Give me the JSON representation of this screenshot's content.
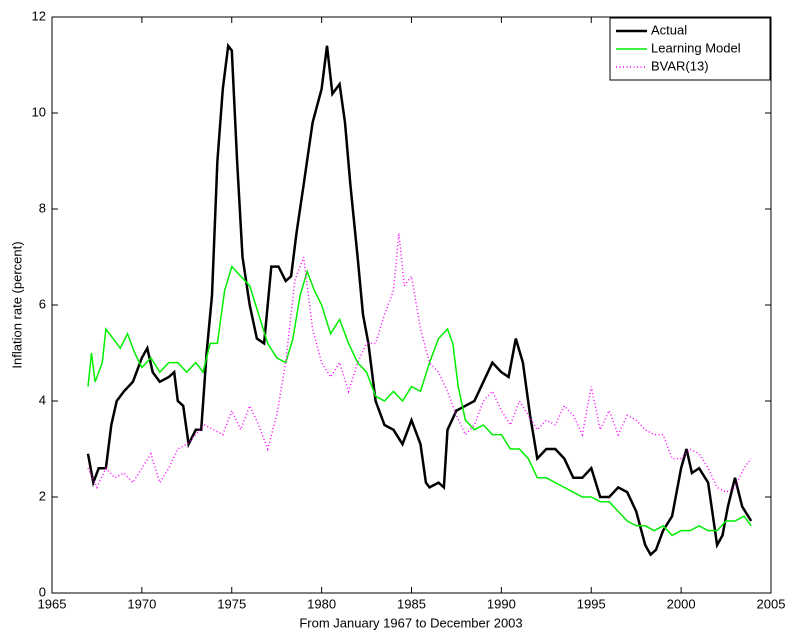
{
  "chart_data": {
    "type": "line",
    "xlabel": "From January 1967 to December 2003",
    "ylabel": "Inflation rate (percent)",
    "xlim": [
      1965,
      2005
    ],
    "xticks": [
      1965,
      1970,
      1975,
      1980,
      1985,
      1990,
      1995,
      2000,
      2005
    ],
    "ylim": [
      0,
      12
    ],
    "yticks": [
      0,
      2,
      4,
      6,
      8,
      10,
      12
    ],
    "legend": "upper right",
    "series": [
      {
        "name": "Actual",
        "color": "#000000",
        "style": "solid",
        "x": [
          1967.0,
          1967.3,
          1967.6,
          1968.0,
          1968.3,
          1968.6,
          1969.0,
          1969.5,
          1970.0,
          1970.3,
          1970.6,
          1971.0,
          1971.5,
          1971.8,
          1972.0,
          1972.3,
          1972.6,
          1973.0,
          1973.3,
          1973.6,
          1973.9,
          1974.2,
          1974.5,
          1974.8,
          1975.0,
          1975.3,
          1975.6,
          1976.0,
          1976.4,
          1976.8,
          1977.2,
          1977.6,
          1978.0,
          1978.3,
          1978.6,
          1979.0,
          1979.5,
          1980.0,
          1980.3,
          1980.6,
          1981.0,
          1981.3,
          1981.6,
          1982.0,
          1982.3,
          1982.6,
          1983.0,
          1983.5,
          1984.0,
          1984.5,
          1985.0,
          1985.5,
          1985.8,
          1986.0,
          1986.5,
          1986.8,
          1987.0,
          1987.5,
          1988.0,
          1988.5,
          1989.0,
          1989.5,
          1990.0,
          1990.4,
          1990.8,
          1991.2,
          1991.6,
          1992.0,
          1992.5,
          1993.0,
          1993.5,
          1994.0,
          1994.5,
          1995.0,
          1995.5,
          1996.0,
          1996.5,
          1997.0,
          1997.5,
          1998.0,
          1998.3,
          1998.6,
          1999.0,
          1999.5,
          2000.0,
          2000.3,
          2000.6,
          2001.0,
          2001.5,
          2002.0,
          2002.3,
          2002.6,
          2003.0,
          2003.4,
          2003.9
        ],
        "values": [
          2.9,
          2.3,
          2.6,
          2.6,
          3.5,
          4.0,
          4.2,
          4.4,
          4.9,
          5.1,
          4.6,
          4.4,
          4.5,
          4.6,
          4.0,
          3.9,
          3.1,
          3.4,
          3.4,
          5.0,
          6.2,
          9.0,
          10.5,
          11.4,
          11.3,
          9.0,
          7.0,
          6.0,
          5.3,
          5.2,
          6.8,
          6.8,
          6.5,
          6.6,
          7.5,
          8.5,
          9.8,
          10.5,
          11.4,
          10.4,
          10.6,
          9.8,
          8.5,
          7.0,
          5.8,
          5.2,
          4.0,
          3.5,
          3.4,
          3.1,
          3.6,
          3.1,
          2.3,
          2.2,
          2.3,
          2.2,
          3.4,
          3.8,
          3.9,
          4.0,
          4.4,
          4.8,
          4.6,
          4.5,
          5.3,
          4.8,
          3.7,
          2.8,
          3.0,
          3.0,
          2.8,
          2.4,
          2.4,
          2.6,
          2.0,
          2.0,
          2.2,
          2.1,
          1.7,
          1.0,
          0.8,
          0.9,
          1.3,
          1.6,
          2.6,
          3.0,
          2.5,
          2.6,
          2.3,
          1.0,
          1.2,
          1.8,
          2.4,
          1.8,
          1.5
        ]
      },
      {
        "name": "Learning Model",
        "color": "#00ee00",
        "style": "solid",
        "x": [
          1967.0,
          1967.2,
          1967.4,
          1967.8,
          1968.0,
          1968.4,
          1968.8,
          1969.2,
          1969.6,
          1970.0,
          1970.5,
          1971.0,
          1971.5,
          1972.0,
          1972.5,
          1973.0,
          1973.4,
          1973.8,
          1974.2,
          1974.6,
          1975.0,
          1975.5,
          1976.0,
          1976.5,
          1977.0,
          1977.5,
          1978.0,
          1978.4,
          1978.8,
          1979.2,
          1979.6,
          1980.0,
          1980.5,
          1981.0,
          1981.5,
          1982.0,
          1982.5,
          1983.0,
          1983.5,
          1984.0,
          1984.5,
          1985.0,
          1985.5,
          1986.0,
          1986.5,
          1987.0,
          1987.3,
          1987.6,
          1988.0,
          1988.5,
          1989.0,
          1989.5,
          1990.0,
          1990.5,
          1991.0,
          1991.5,
          1992.0,
          1992.5,
          1993.0,
          1993.5,
          1994.0,
          1994.5,
          1995.0,
          1995.5,
          1996.0,
          1996.5,
          1997.0,
          1997.5,
          1998.0,
          1998.5,
          1999.0,
          1999.5,
          2000.0,
          2000.5,
          2001.0,
          2001.5,
          2002.0,
          2002.5,
          2003.0,
          2003.5,
          2003.9
        ],
        "values": [
          4.3,
          5.0,
          4.4,
          4.8,
          5.5,
          5.3,
          5.1,
          5.4,
          5.0,
          4.7,
          4.9,
          4.6,
          4.8,
          4.8,
          4.6,
          4.8,
          4.6,
          5.2,
          5.2,
          6.3,
          6.8,
          6.6,
          6.4,
          5.8,
          5.2,
          4.9,
          4.8,
          5.3,
          6.2,
          6.7,
          6.3,
          6.0,
          5.4,
          5.7,
          5.2,
          4.8,
          4.6,
          4.1,
          4.0,
          4.2,
          4.0,
          4.3,
          4.2,
          4.8,
          5.3,
          5.5,
          5.2,
          4.3,
          3.6,
          3.4,
          3.5,
          3.3,
          3.3,
          3.0,
          3.0,
          2.8,
          2.4,
          2.4,
          2.3,
          2.2,
          2.1,
          2.0,
          2.0,
          1.9,
          1.9,
          1.7,
          1.5,
          1.4,
          1.4,
          1.3,
          1.4,
          1.2,
          1.3,
          1.3,
          1.4,
          1.3,
          1.3,
          1.5,
          1.5,
          1.6,
          1.4
        ]
      },
      {
        "name": "BVAR(13)",
        "color": "#ff00ff",
        "style": "dotted",
        "x": [
          1967.0,
          1967.5,
          1968.0,
          1968.5,
          1969.0,
          1969.5,
          1970.0,
          1970.5,
          1971.0,
          1971.5,
          1972.0,
          1972.5,
          1973.0,
          1973.5,
          1974.0,
          1974.5,
          1975.0,
          1975.5,
          1976.0,
          1976.5,
          1977.0,
          1977.5,
          1978.0,
          1978.5,
          1979.0,
          1979.5,
          1980.0,
          1980.5,
          1981.0,
          1981.5,
          1982.0,
          1982.5,
          1983.0,
          1983.5,
          1984.0,
          1984.3,
          1984.6,
          1985.0,
          1985.5,
          1986.0,
          1986.5,
          1987.0,
          1987.5,
          1988.0,
          1988.5,
          1989.0,
          1989.5,
          1990.0,
          1990.5,
          1991.0,
          1991.5,
          1992.0,
          1992.5,
          1993.0,
          1993.5,
          1994.0,
          1994.5,
          1995.0,
          1995.5,
          1996.0,
          1996.5,
          1997.0,
          1997.5,
          1998.0,
          1998.5,
          1999.0,
          1999.5,
          2000.0,
          2000.5,
          2001.0,
          2001.5,
          2002.0,
          2002.5,
          2003.0,
          2003.5,
          2003.9
        ],
        "values": [
          2.6,
          2.2,
          2.6,
          2.4,
          2.5,
          2.3,
          2.6,
          2.9,
          2.3,
          2.6,
          3.0,
          3.1,
          3.3,
          3.5,
          3.4,
          3.3,
          3.8,
          3.4,
          3.9,
          3.5,
          3.0,
          3.7,
          4.8,
          6.5,
          7.0,
          5.5,
          4.8,
          4.5,
          4.8,
          4.2,
          4.8,
          5.2,
          5.2,
          5.8,
          6.3,
          7.5,
          6.4,
          6.6,
          5.5,
          4.8,
          4.6,
          4.2,
          3.7,
          3.3,
          3.5,
          4.0,
          4.2,
          3.8,
          3.5,
          4.0,
          3.7,
          3.4,
          3.6,
          3.5,
          3.9,
          3.7,
          3.3,
          4.3,
          3.4,
          3.8,
          3.3,
          3.7,
          3.6,
          3.4,
          3.3,
          3.3,
          2.8,
          2.8,
          3.0,
          2.9,
          2.6,
          2.2,
          2.1,
          2.2,
          2.6,
          2.8
        ]
      }
    ]
  }
}
